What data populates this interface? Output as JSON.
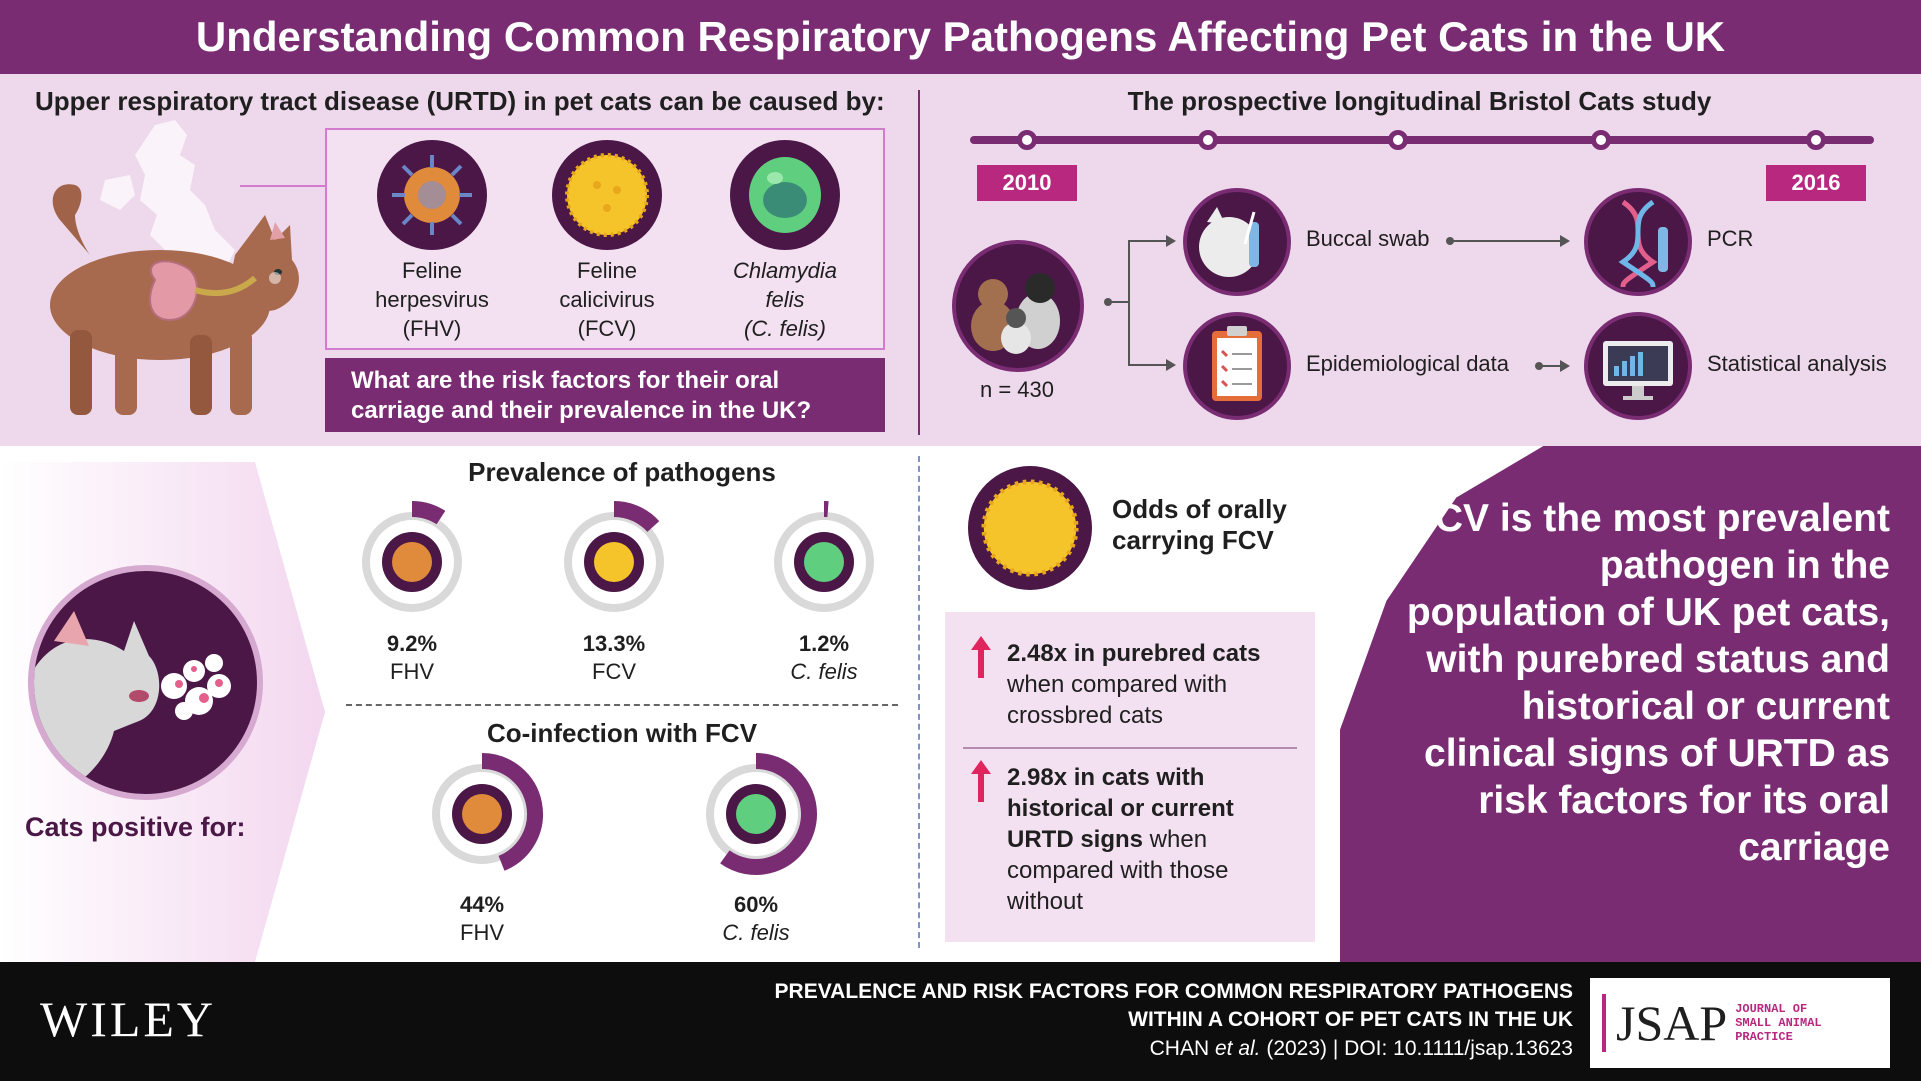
{
  "header": {
    "title": "Understanding Common Respiratory Pathogens Affecting Pet Cats in the UK"
  },
  "top_left": {
    "heading": "Upper respiratory tract disease (URTD) in pet cats can be caused by:",
    "pathogens": [
      {
        "line1": "Feline",
        "line2": "herpesvirus",
        "abbr": "(FHV)",
        "icon": "herpesvirus-icon"
      },
      {
        "line1": "Feline",
        "line2": "calicivirus",
        "abbr": "(FCV)",
        "icon": "calicivirus-icon"
      },
      {
        "line1": "Chlamydia",
        "line2": "felis",
        "abbr": "(C. felis)",
        "icon": "chlamydia-icon"
      }
    ],
    "question": "What are the risk factors for their oral carriage and their prevalence in the UK?"
  },
  "top_right": {
    "heading": "The prospective longitudinal Bristol Cats study",
    "year_start": "2010",
    "year_end": "2016",
    "cohort": "n = 430",
    "steps": {
      "swab": "Buccal swab",
      "pcr": "PCR",
      "epi": "Epidemiological data",
      "stats": "Statistical analysis"
    }
  },
  "prevalence": {
    "heading": "Prevalence of pathogens",
    "items": [
      {
        "pct": "9.2%",
        "name": "FHV",
        "value": 9.2
      },
      {
        "pct": "13.3%",
        "name": "FCV",
        "value": 13.3
      },
      {
        "pct": "1.2%",
        "name": "C. felis",
        "value": 1.2
      }
    ]
  },
  "coinfection": {
    "heading": "Co-infection with FCV",
    "items": [
      {
        "pct": "44%",
        "name": "FHV",
        "value": 44
      },
      {
        "pct": "60%",
        "name": "C. felis",
        "value": 60
      }
    ]
  },
  "cats_positive": "Cats positive for:",
  "odds": {
    "title": "Odds of orally carrying FCV",
    "item1_bold": "2.48x in purebred cats",
    "item1_rest": " when compared with crossbred cats",
    "item2_bold": "2.98x in cats with historical or current URTD signs",
    "item2_rest": " when compared with those without"
  },
  "conclusion": "FCV is the most prevalent pathogen in the population of UK pet cats, with purebred status and historical or current clinical signs of URTD as risk factors for its oral carriage",
  "footer": {
    "publisher": "WILEY",
    "title_line1": "PREVALENCE AND RISK FACTORS FOR COMMON RESPIRATORY PATHOGENS",
    "title_line2": "WITHIN A COHORT OF PET CATS IN THE UK",
    "author": "CHAN",
    "et_al": "et al.",
    "citation_rest": " (2023) | DOI: 10.1111/jsap.13623",
    "journal_abbr": "JSAP",
    "journal_name_1": "JOURNAL OF",
    "journal_name_2": "SMALL ANIMAL",
    "journal_name_3": "PRACTICE"
  },
  "colors": {
    "primary": "#7a2c73",
    "dark": "#4a1746",
    "light": "#eed8ec",
    "accent": "#b8287f"
  }
}
